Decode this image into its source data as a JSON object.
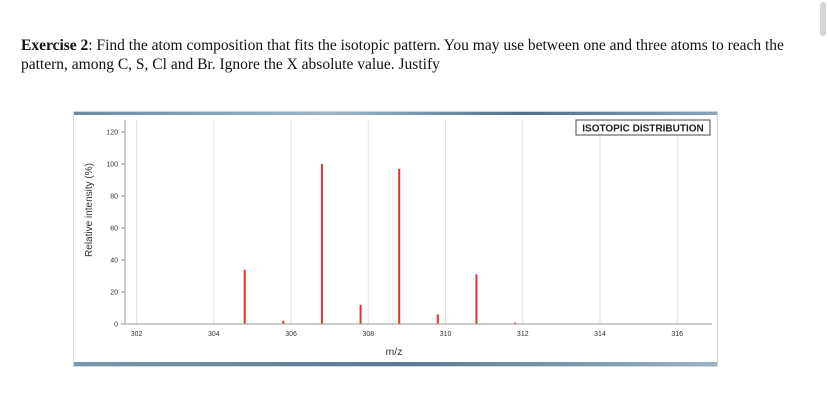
{
  "exercise": {
    "label": "Exercise 2",
    "text": ": Find the atom composition that fits the isotopic pattern. You may use between one and three atoms to reach the pattern, among C, S, Cl and Br. Ignore the X absolute value. Justify"
  },
  "chart_data": {
    "type": "bar",
    "title": "ISOTOPIC DISTRIBUTION",
    "xlabel": "m/z",
    "ylabel": "Relative intensity (%)",
    "xlim": [
      301.7,
      316.9
    ],
    "ylim": [
      0,
      120
    ],
    "x_ticks": [
      302,
      304,
      306,
      308,
      310,
      312,
      314,
      316
    ],
    "y_ticks": [
      0,
      20,
      40,
      60,
      80,
      100,
      120
    ],
    "grid": true,
    "color": "#e8312a",
    "x": [
      302.0,
      304.0,
      304.8,
      305.8,
      306.8,
      307.8,
      308.8,
      309.8,
      310.8,
      311.8
    ],
    "values": [
      0.3,
      0.3,
      34,
      2,
      100,
      12,
      97,
      6,
      31,
      0.8
    ]
  }
}
